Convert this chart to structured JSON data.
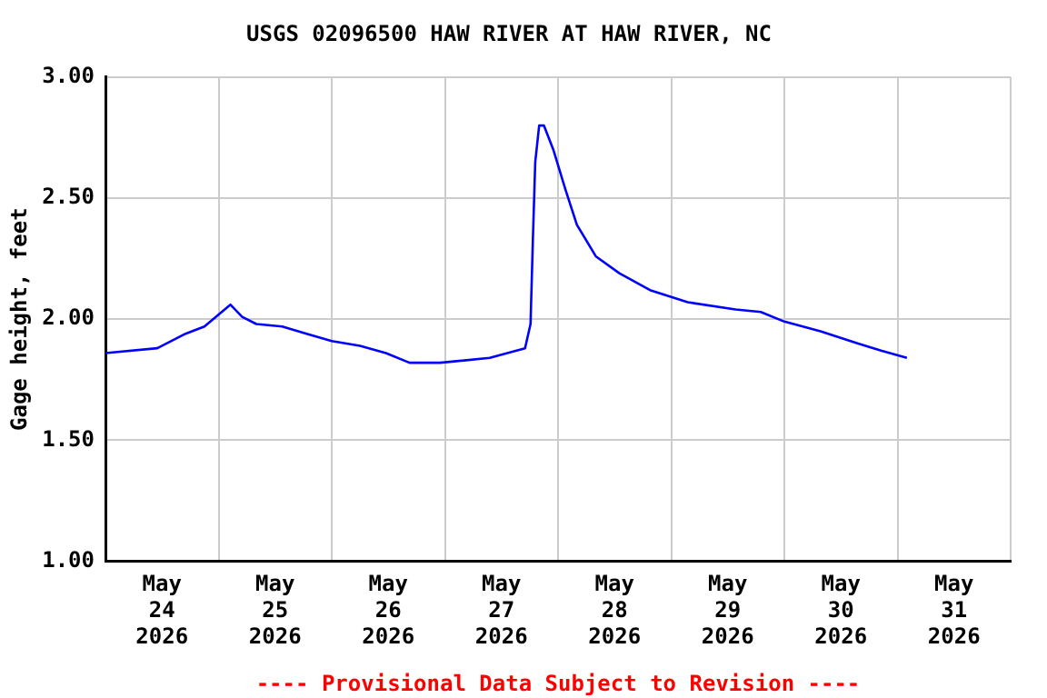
{
  "chart_data": {
    "type": "line",
    "title": "USGS 02096500 HAW RIVER AT HAW RIVER, NC",
    "ylabel": "Gage height, feet",
    "x": [
      "2026-05-24T00:00",
      "2026-05-24T11:00",
      "2026-05-24T17:00",
      "2026-05-24T21:00",
      "2026-05-25T02:30",
      "2026-05-25T05:00",
      "2026-05-25T08:00",
      "2026-05-25T13:30",
      "2026-05-25T18:40",
      "2026-05-26T00:00",
      "2026-05-26T06:00",
      "2026-05-26T11:30",
      "2026-05-26T16:30",
      "2026-05-26T23:00",
      "2026-05-27T09:30",
      "2026-05-27T17:00",
      "2026-05-27T18:10",
      "2026-05-27T18:40",
      "2026-05-27T19:10",
      "2026-05-27T20:00",
      "2026-05-27T21:00",
      "2026-05-27T23:00",
      "2026-05-28T01:30",
      "2026-05-28T04:00",
      "2026-05-28T08:00",
      "2026-05-28T13:00",
      "2026-05-28T19:30",
      "2026-05-29T03:30",
      "2026-05-29T13:40",
      "2026-05-29T19:00",
      "2026-05-30T00:00",
      "2026-05-30T07:40",
      "2026-05-30T15:30",
      "2026-05-30T20:30",
      "2026-05-31T02:00"
    ],
    "series": [
      {
        "color": "#0000ff",
        "values": [
          1.86,
          1.88,
          1.94,
          1.97,
          2.06,
          2.01,
          1.98,
          1.97,
          1.94,
          1.91,
          1.89,
          1.86,
          1.82,
          1.82,
          1.84,
          1.88,
          1.98,
          2.33,
          2.65,
          2.8,
          2.8,
          2.7,
          2.54,
          2.39,
          2.26,
          2.19,
          2.12,
          2.07,
          2.04,
          2.03,
          1.99,
          1.95,
          1.9,
          1.87,
          1.84
        ]
      }
    ],
    "xlim": [
      "2026-05-24T00:00",
      "2026-06-01T00:00"
    ],
    "xticks": [
      {
        "value": "2026-05-24T00:00",
        "label": null
      },
      {
        "value": "2026-05-24T12:00",
        "label": "May 24 2026"
      },
      {
        "value": "2026-05-25T00:00",
        "label": null
      },
      {
        "value": "2026-05-25T12:00",
        "label": "May 25 2026"
      },
      {
        "value": "2026-05-26T00:00",
        "label": null
      },
      {
        "value": "2026-05-26T12:00",
        "label": "May 26 2026"
      },
      {
        "value": "2026-05-27T00:00",
        "label": null
      },
      {
        "value": "2026-05-27T12:00",
        "label": "May 27 2026"
      },
      {
        "value": "2026-05-28T00:00",
        "label": null
      },
      {
        "value": "2026-05-28T12:00",
        "label": "May 28 2026"
      },
      {
        "value": "2026-05-29T00:00",
        "label": null
      },
      {
        "value": "2026-05-29T12:00",
        "label": "May 29 2026"
      },
      {
        "value": "2026-05-30T00:00",
        "label": null
      },
      {
        "value": "2026-05-30T12:00",
        "label": "May 30 2026"
      },
      {
        "value": "2026-05-31T00:00",
        "label": null
      },
      {
        "value": "2026-05-31T12:00",
        "label": "May 31 2026"
      },
      {
        "value": "2026-06-01T00:00",
        "label": null
      }
    ],
    "ylim": [
      1,
      3
    ],
    "yticks": [
      {
        "value": 1,
        "label": "1.00"
      },
      {
        "value": 1.5,
        "label": "1.50"
      },
      {
        "value": 2,
        "label": "2.00"
      },
      {
        "value": 2.5,
        "label": "2.50"
      },
      {
        "value": 3,
        "label": "3.00"
      }
    ],
    "grid": true,
    "legend": false,
    "marker": "none",
    "line_style": "solid",
    "annotations": [
      "---- Provisional Data Subject to Revision ----"
    ]
  }
}
